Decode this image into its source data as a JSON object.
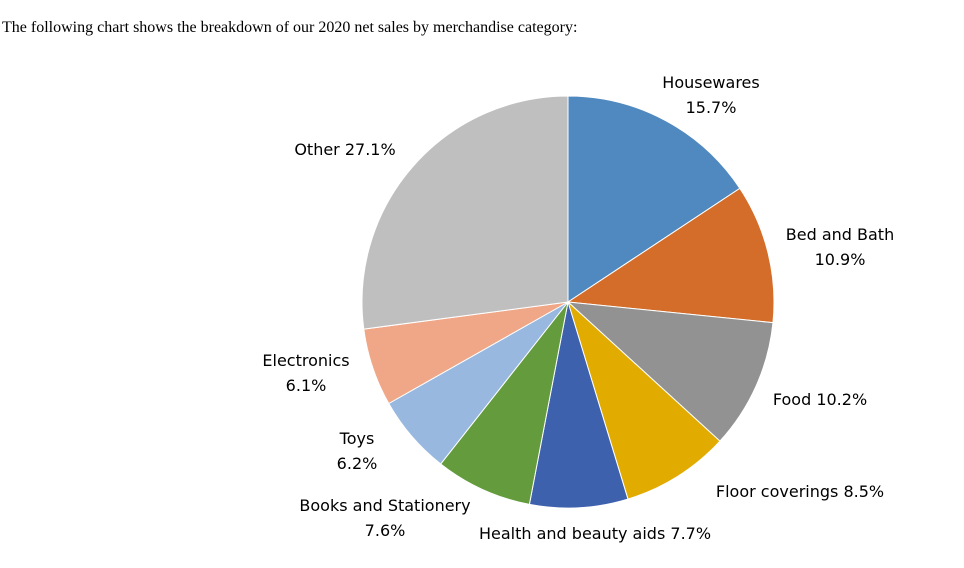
{
  "intro_text": "The following chart shows the breakdown of our 2020 net sales by merchandise category:",
  "chart_data": {
    "type": "pie",
    "categories": [
      "Housewares",
      "Bed and Bath",
      "Food",
      "Floor coverings",
      "Health and beauty aids",
      "Books and Stationery",
      "Toys",
      "Electronics",
      "Other"
    ],
    "values": [
      15.7,
      10.9,
      10.2,
      8.5,
      7.7,
      7.6,
      6.2,
      6.1,
      27.1
    ],
    "value_labels": [
      "15.7%",
      "10.9%",
      "10.2%",
      "8.5%",
      "7.7%",
      "7.6%",
      "6.2%",
      "6.1%",
      "27.1%"
    ],
    "colors": [
      "#5089bf",
      "#d36d29",
      "#929292",
      "#e2ab00",
      "#3e61ad",
      "#639b3d",
      "#98b8e0",
      "#efa788",
      "#bfbfbf"
    ],
    "start_angle": "12 o'clock",
    "direction": "clockwise",
    "legend": "none",
    "data_labels": "outside"
  }
}
